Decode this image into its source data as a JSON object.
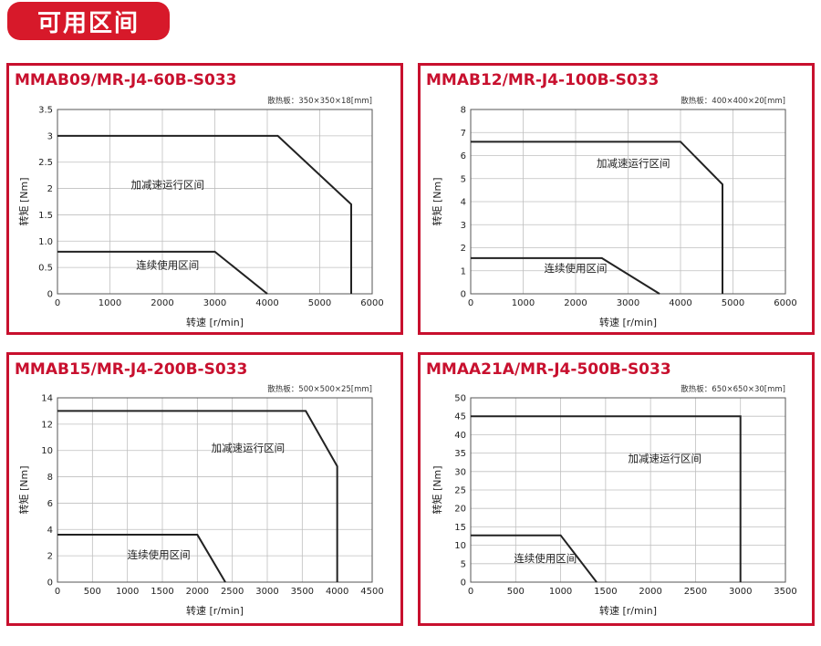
{
  "page": {
    "heading": "可用区间"
  },
  "chart_data": [
    {
      "type": "line",
      "title": "MMAB09/MR-J4-60B-S033",
      "subtitle": "散热板：350×350×18[mm]",
      "xlabel": "转速 [r/min]",
      "ylabel": "转矩 [Nm]",
      "xlim": [
        0,
        6000
      ],
      "ylim": [
        0,
        3.5
      ],
      "xticks": [
        0,
        1000,
        2000,
        3000,
        4000,
        5000,
        6000
      ],
      "yticks": [
        0,
        0.5,
        1.0,
        1.5,
        2,
        2.5,
        3,
        3.5
      ],
      "xtick_labels": [
        "0",
        "1000",
        "2000",
        "3000",
        "4000",
        "5000",
        "6000"
      ],
      "ytick_labels": [
        "0",
        "0.5",
        "1.0",
        "1.5",
        "2",
        "2.5",
        "3",
        "3.5"
      ],
      "grid": true,
      "series": [
        {
          "name": "加减速运行区间",
          "x": [
            0,
            4200,
            5600,
            5600
          ],
          "y": [
            3,
            3,
            1.7,
            0
          ]
        },
        {
          "name": "连续使用区间",
          "x": [
            0,
            3000,
            4000
          ],
          "y": [
            0.8,
            0.8,
            0
          ]
        }
      ],
      "annotations": [
        {
          "text": "加减速运行区间",
          "x": 1400,
          "y": 2.0
        },
        {
          "text": "连续使用区间",
          "x": 1500,
          "y": 0.48
        }
      ]
    },
    {
      "type": "line",
      "title": "MMAB12/MR-J4-100B-S033",
      "subtitle": "散热板：400×400×20[mm]",
      "xlabel": "转速 [r/min]",
      "ylabel": "转矩 [Nm]",
      "xlim": [
        0,
        6000
      ],
      "ylim": [
        0,
        8
      ],
      "xticks": [
        0,
        1000,
        2000,
        3000,
        4000,
        5000,
        6000
      ],
      "yticks": [
        0,
        1,
        2,
        3,
        4,
        5,
        6,
        7,
        8
      ],
      "xtick_labels": [
        "0",
        "1000",
        "2000",
        "3000",
        "4000",
        "5000",
        "6000"
      ],
      "ytick_labels": [
        "0",
        "1",
        "2",
        "3",
        "4",
        "5",
        "6",
        "7",
        "8"
      ],
      "grid": true,
      "series": [
        {
          "name": "加减速运行区间",
          "x": [
            0,
            4000,
            4800,
            4800
          ],
          "y": [
            6.6,
            6.6,
            4.75,
            0
          ]
        },
        {
          "name": "连续使用区间",
          "x": [
            0,
            2500,
            3600
          ],
          "y": [
            1.55,
            1.55,
            0
          ]
        }
      ],
      "annotations": [
        {
          "text": "加减速运行区间",
          "x": 2400,
          "y": 5.5
        },
        {
          "text": "连续使用区间",
          "x": 1400,
          "y": 0.95
        }
      ]
    },
    {
      "type": "line",
      "title": "MMAB15/MR-J4-200B-S033",
      "subtitle": "散热板：500×500×25[mm]",
      "xlabel": "转速 [r/min]",
      "ylabel": "转矩 [Nm]",
      "xlim": [
        0,
        4500
      ],
      "ylim": [
        0,
        14
      ],
      "xticks": [
        0,
        500,
        1000,
        1500,
        2000,
        2500,
        3000,
        3500,
        4000,
        4500
      ],
      "yticks": [
        0,
        2,
        4,
        6,
        8,
        10,
        12,
        14
      ],
      "xtick_labels": [
        "0",
        "500",
        "1000",
        "1500",
        "2000",
        "2500",
        "3000",
        "3500",
        "4000",
        "4500"
      ],
      "ytick_labels": [
        "0",
        "2",
        "4",
        "6",
        "8",
        "10",
        "12",
        "14"
      ],
      "grid": true,
      "series": [
        {
          "name": "加减速运行区间",
          "x": [
            0,
            3550,
            4000,
            4000
          ],
          "y": [
            13,
            13,
            8.8,
            0
          ]
        },
        {
          "name": "连续使用区间",
          "x": [
            0,
            2000,
            2400
          ],
          "y": [
            3.6,
            3.6,
            0
          ]
        }
      ],
      "annotations": [
        {
          "text": "加减速运行区间",
          "x": 2200,
          "y": 9.9
        },
        {
          "text": "连续使用区间",
          "x": 1000,
          "y": 1.8
        }
      ]
    },
    {
      "type": "line",
      "title": "MMAA21A/MR-J4-500B-S033",
      "subtitle": "散热板：650×650×30[mm]",
      "xlabel": "转速 [r/min]",
      "ylabel": "转矩 [Nm]",
      "xlim": [
        0,
        3500
      ],
      "ylim": [
        0,
        50
      ],
      "xticks": [
        0,
        500,
        1000,
        1500,
        2000,
        2500,
        3000,
        3500
      ],
      "yticks": [
        0,
        5,
        10,
        15,
        20,
        25,
        30,
        35,
        40,
        45,
        50
      ],
      "xtick_labels": [
        "0",
        "500",
        "1000",
        "1500",
        "2000",
        "2500",
        "3000",
        "3500"
      ],
      "ytick_labels": [
        "0",
        "5",
        "10",
        "15",
        "20",
        "25",
        "30",
        "35",
        "40",
        "45",
        "50"
      ],
      "grid": true,
      "series": [
        {
          "name": "加减速运行区间",
          "x": [
            0,
            3000,
            3000
          ],
          "y": [
            45,
            45,
            0
          ]
        },
        {
          "name": "连续使用区间",
          "x": [
            0,
            1000,
            1400
          ],
          "y": [
            12.7,
            12.7,
            0
          ]
        }
      ],
      "annotations": [
        {
          "text": "加减速运行区间",
          "x": 1750,
          "y": 32.5
        },
        {
          "text": "连续使用区间",
          "x": 480,
          "y": 5.5
        }
      ]
    }
  ]
}
